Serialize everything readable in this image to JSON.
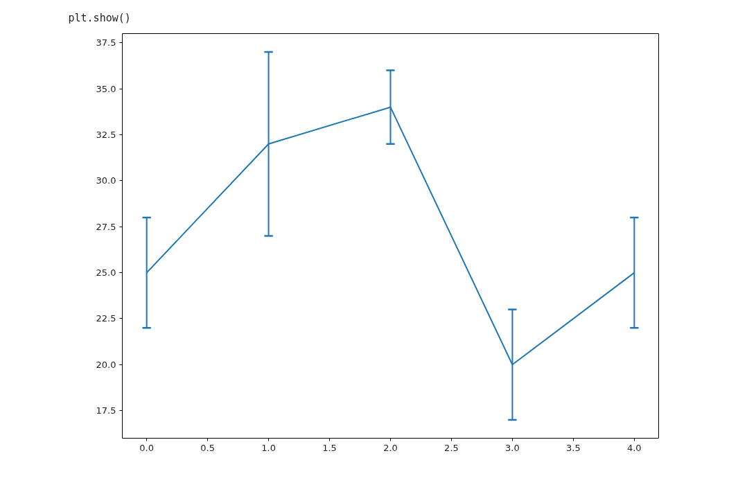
{
  "chart_data": {
    "type": "line",
    "x": [
      0,
      1,
      2,
      3,
      4
    ],
    "values": [
      25,
      32,
      34,
      20,
      25
    ],
    "errors": [
      3,
      5,
      2,
      3,
      3
    ],
    "color": "#1f77b4",
    "xlim": [
      -0.2,
      4.2
    ],
    "xticks": [
      {
        "value": 0,
        "label": "0.0"
      },
      {
        "value": 0.5,
        "label": "0.5"
      },
      {
        "value": 1,
        "label": "1.0"
      },
      {
        "value": 1.5,
        "label": "1.5"
      },
      {
        "value": 2,
        "label": "2.0"
      },
      {
        "value": 2.5,
        "label": "2.5"
      },
      {
        "value": 3,
        "label": "3.0"
      },
      {
        "value": 3.5,
        "label": "3.5"
      },
      {
        "value": 4,
        "label": "4.0"
      }
    ],
    "ylim": [
      16.0,
      38.0
    ],
    "yticks": [
      {
        "value": 17.5,
        "label": "17.5"
      },
      {
        "value": 20,
        "label": "20.0"
      },
      {
        "value": 22.5,
        "label": "22.5"
      },
      {
        "value": 25,
        "label": "25.0"
      },
      {
        "value": 27.5,
        "label": "27.5"
      },
      {
        "value": 30,
        "label": "30.0"
      },
      {
        "value": 32.5,
        "label": "32.5"
      },
      {
        "value": 35,
        "label": "35.0"
      },
      {
        "value": 37.5,
        "label": "37.5"
      }
    ],
    "grid": false,
    "annotations": [
      "plt.show()"
    ]
  }
}
